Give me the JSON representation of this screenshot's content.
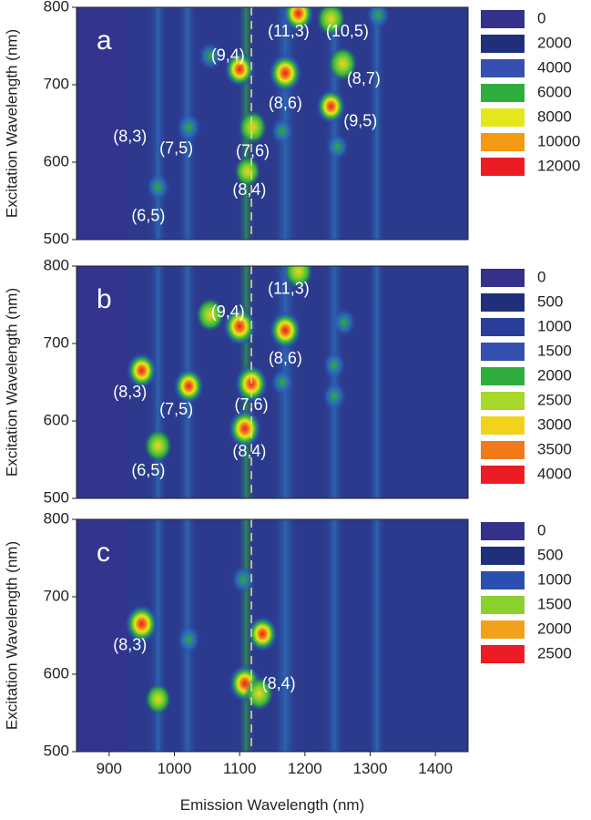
{
  "chart_data": [
    {
      "type": "heatmap",
      "panel_label": "a",
      "xlabel": "",
      "ylabel": "Excitation Wavelength (nm)",
      "xlim": [
        850,
        1450
      ],
      "ylim": [
        500,
        800
      ],
      "y_ticks": [
        "500",
        "600",
        "700",
        "800"
      ],
      "x_ticks": [],
      "background": "#2b3a8c",
      "reference_line_x": 1118,
      "colorbar": {
        "levels": [
          "0",
          "2000",
          "4000",
          "6000",
          "8000",
          "10000",
          "12000"
        ],
        "colors": [
          "#35308a",
          "#1f2f7a",
          "#3550b0",
          "#2fae3e",
          "#e4e81a",
          "#f49a12",
          "#ec1c24"
        ]
      },
      "peaks": [
        {
          "x": 975,
          "y": 568,
          "intensity": 0.5
        },
        {
          "x": 1022,
          "y": 645,
          "intensity": 0.55
        },
        {
          "x": 1055,
          "y": 737,
          "intensity": 0.5
        },
        {
          "x": 1100,
          "y": 720,
          "intensity": 0.85
        },
        {
          "x": 1120,
          "y": 645,
          "intensity": 0.75
        },
        {
          "x": 1112,
          "y": 588,
          "intensity": 0.6
        },
        {
          "x": 1170,
          "y": 715,
          "intensity": 1.0
        },
        {
          "x": 1190,
          "y": 792,
          "intensity": 0.9
        },
        {
          "x": 1240,
          "y": 785,
          "intensity": 0.75
        },
        {
          "x": 1258,
          "y": 727,
          "intensity": 0.75
        },
        {
          "x": 1240,
          "y": 672,
          "intensity": 0.8
        },
        {
          "x": 1312,
          "y": 790,
          "intensity": 0.5
        },
        {
          "x": 1165,
          "y": 640,
          "intensity": 0.45
        },
        {
          "x": 1250,
          "y": 620,
          "intensity": 0.45
        }
      ],
      "annotations": [
        {
          "text": "(8,3)",
          "x": 932,
          "y": 632
        },
        {
          "text": "(7,5)",
          "x": 1003,
          "y": 617
        },
        {
          "text": "(6,5)",
          "x": 960,
          "y": 530
        },
        {
          "text": "(9,4)",
          "x": 1082,
          "y": 737
        },
        {
          "text": "(7,6)",
          "x": 1120,
          "y": 613
        },
        {
          "text": "(8,4)",
          "x": 1115,
          "y": 563
        },
        {
          "text": "(8,6)",
          "x": 1170,
          "y": 675
        },
        {
          "text": "(11,3)",
          "x": 1175,
          "y": 768
        },
        {
          "text": "(10,5)",
          "x": 1265,
          "y": 768
        },
        {
          "text": "(8,7)",
          "x": 1290,
          "y": 707
        },
        {
          "text": "(9,5)",
          "x": 1285,
          "y": 652
        }
      ]
    },
    {
      "type": "heatmap",
      "panel_label": "b",
      "xlabel": "",
      "ylabel": "Excitation Wavelength (nm)",
      "xlim": [
        850,
        1450
      ],
      "ylim": [
        500,
        800
      ],
      "y_ticks": [
        "500",
        "600",
        "700",
        "800"
      ],
      "x_ticks": [],
      "background": "#2b3a8c",
      "reference_line_x": 1118,
      "colorbar": {
        "levels": [
          "0",
          "500",
          "1000",
          "1500",
          "2000",
          "2500",
          "3000",
          "3500",
          "4000"
        ],
        "colors": [
          "#35308a",
          "#1f2f7a",
          "#2a3d9a",
          "#3550b0",
          "#2fae3e",
          "#a8d82a",
          "#f2d21a",
          "#f07a1a",
          "#ec1c24"
        ]
      },
      "peaks": [
        {
          "x": 950,
          "y": 665,
          "intensity": 0.85
        },
        {
          "x": 975,
          "y": 568,
          "intensity": 0.7
        },
        {
          "x": 1022,
          "y": 645,
          "intensity": 0.85
        },
        {
          "x": 1055,
          "y": 737,
          "intensity": 0.75
        },
        {
          "x": 1100,
          "y": 722,
          "intensity": 1.0
        },
        {
          "x": 1118,
          "y": 648,
          "intensity": 1.0
        },
        {
          "x": 1108,
          "y": 590,
          "intensity": 1.0
        },
        {
          "x": 1170,
          "y": 717,
          "intensity": 0.95
        },
        {
          "x": 1190,
          "y": 793,
          "intensity": 0.75
        },
        {
          "x": 1260,
          "y": 727,
          "intensity": 0.5
        },
        {
          "x": 1245,
          "y": 672,
          "intensity": 0.45
        },
        {
          "x": 1245,
          "y": 632,
          "intensity": 0.5
        },
        {
          "x": 1165,
          "y": 650,
          "intensity": 0.45
        }
      ],
      "annotations": [
        {
          "text": "(8,3)",
          "x": 932,
          "y": 636
        },
        {
          "text": "(7,5)",
          "x": 1003,
          "y": 614
        },
        {
          "text": "(6,5)",
          "x": 960,
          "y": 535
        },
        {
          "text": "(9,4)",
          "x": 1082,
          "y": 740
        },
        {
          "text": "(7,6)",
          "x": 1118,
          "y": 620
        },
        {
          "text": "(8,4)",
          "x": 1115,
          "y": 560
        },
        {
          "text": "(8,6)",
          "x": 1170,
          "y": 680
        },
        {
          "text": "(11,3)",
          "x": 1175,
          "y": 770
        }
      ]
    },
    {
      "type": "heatmap",
      "panel_label": "c",
      "xlabel": "Emission Wavelength (nm)",
      "ylabel": "Excitation Wavelength (nm)",
      "xlim": [
        850,
        1450
      ],
      "ylim": [
        500,
        800
      ],
      "y_ticks": [
        "500",
        "600",
        "700",
        "800"
      ],
      "x_ticks": [
        "900",
        "1000",
        "1100",
        "1200",
        "1300",
        "1400"
      ],
      "background": "#2b3a8c",
      "reference_line_x": 1118,
      "colorbar": {
        "levels": [
          "0",
          "500",
          "1000",
          "1500",
          "2000",
          "2500"
        ],
        "colors": [
          "#35308a",
          "#1f2f7a",
          "#2a4fb0",
          "#8bd12e",
          "#f2a21a",
          "#ec1c24"
        ]
      },
      "peaks": [
        {
          "x": 950,
          "y": 665,
          "intensity": 1.0
        },
        {
          "x": 975,
          "y": 568,
          "intensity": 0.6
        },
        {
          "x": 1022,
          "y": 645,
          "intensity": 0.5
        },
        {
          "x": 1105,
          "y": 722,
          "intensity": 0.5
        },
        {
          "x": 1135,
          "y": 652,
          "intensity": 0.85
        },
        {
          "x": 1108,
          "y": 588,
          "intensity": 0.95
        },
        {
          "x": 1130,
          "y": 575,
          "intensity": 0.75
        }
      ],
      "annotations": [
        {
          "text": "(8,3)",
          "x": 932,
          "y": 637
        },
        {
          "text": "(8,4)",
          "x": 1160,
          "y": 587
        }
      ]
    }
  ]
}
